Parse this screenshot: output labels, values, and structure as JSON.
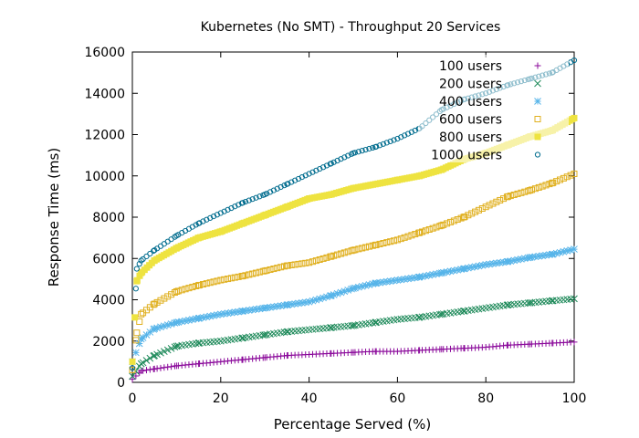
{
  "chart_data": {
    "type": "scatter",
    "title": "Kubernetes (No SMT) - Throughput 20 Services",
    "xlabel": "Percentage Served (%)",
    "ylabel": "Response Time (ms)",
    "xlim": [
      0,
      100
    ],
    "ylim": [
      0,
      16000
    ],
    "xticks": [
      "0",
      "20",
      "40",
      "60",
      "80",
      "100"
    ],
    "yticks": [
      "0",
      "2000",
      "4000",
      "6000",
      "8000",
      "10000",
      "12000",
      "14000",
      "16000"
    ],
    "grid": false,
    "legend_position": "top-right",
    "series": [
      {
        "name": "100 users",
        "marker": "plus",
        "color": "#8B0A9B",
        "points": [
          [
            0,
            150
          ],
          [
            2,
            550
          ],
          [
            5,
            650
          ],
          [
            10,
            800
          ],
          [
            15,
            900
          ],
          [
            20,
            1000
          ],
          [
            25,
            1100
          ],
          [
            30,
            1200
          ],
          [
            35,
            1300
          ],
          [
            40,
            1350
          ],
          [
            45,
            1400
          ],
          [
            50,
            1450
          ],
          [
            55,
            1500
          ],
          [
            60,
            1500
          ],
          [
            65,
            1550
          ],
          [
            70,
            1600
          ],
          [
            75,
            1650
          ],
          [
            80,
            1700
          ],
          [
            85,
            1800
          ],
          [
            90,
            1850
          ],
          [
            95,
            1900
          ],
          [
            100,
            1950
          ]
        ]
      },
      {
        "name": "200 users",
        "marker": "cross",
        "color": "#1E8A5A",
        "points": [
          [
            0,
            300
          ],
          [
            2,
            900
          ],
          [
            5,
            1300
          ],
          [
            10,
            1750
          ],
          [
            15,
            1900
          ],
          [
            20,
            2000
          ],
          [
            25,
            2150
          ],
          [
            30,
            2300
          ],
          [
            35,
            2450
          ],
          [
            40,
            2550
          ],
          [
            45,
            2650
          ],
          [
            50,
            2750
          ],
          [
            55,
            2900
          ],
          [
            60,
            3050
          ],
          [
            65,
            3150
          ],
          [
            70,
            3300
          ],
          [
            75,
            3450
          ],
          [
            80,
            3600
          ],
          [
            85,
            3750
          ],
          [
            90,
            3850
          ],
          [
            95,
            3950
          ],
          [
            100,
            4050
          ]
        ]
      },
      {
        "name": "400 users",
        "marker": "star",
        "color": "#56B4E9",
        "points": [
          [
            0,
            1000
          ],
          [
            2,
            2100
          ],
          [
            5,
            2600
          ],
          [
            10,
            2900
          ],
          [
            15,
            3100
          ],
          [
            20,
            3300
          ],
          [
            25,
            3450
          ],
          [
            30,
            3600
          ],
          [
            35,
            3750
          ],
          [
            40,
            3900
          ],
          [
            45,
            4200
          ],
          [
            50,
            4550
          ],
          [
            55,
            4800
          ],
          [
            60,
            4950
          ],
          [
            65,
            5100
          ],
          [
            70,
            5300
          ],
          [
            75,
            5500
          ],
          [
            80,
            5700
          ],
          [
            85,
            5850
          ],
          [
            90,
            6050
          ],
          [
            95,
            6200
          ],
          [
            100,
            6450
          ]
        ]
      },
      {
        "name": "600 users",
        "marker": "square",
        "color": "#E0B020",
        "points": [
          [
            0,
            600
          ],
          [
            1,
            2400
          ],
          [
            2,
            3300
          ],
          [
            5,
            3800
          ],
          [
            10,
            4400
          ],
          [
            15,
            4700
          ],
          [
            20,
            4950
          ],
          [
            25,
            5150
          ],
          [
            30,
            5400
          ],
          [
            35,
            5650
          ],
          [
            40,
            5800
          ],
          [
            45,
            6100
          ],
          [
            50,
            6400
          ],
          [
            55,
            6650
          ],
          [
            60,
            6900
          ],
          [
            65,
            7250
          ],
          [
            70,
            7600
          ],
          [
            75,
            8000
          ],
          [
            80,
            8500
          ],
          [
            85,
            9000
          ],
          [
            90,
            9300
          ],
          [
            95,
            9650
          ],
          [
            100,
            10100
          ]
        ]
      },
      {
        "name": "800 users",
        "marker": "filled-square",
        "color": "#EEE340",
        "points": [
          [
            0,
            1000
          ],
          [
            1,
            4900
          ],
          [
            2,
            5300
          ],
          [
            5,
            5900
          ],
          [
            10,
            6500
          ],
          [
            15,
            7000
          ],
          [
            20,
            7300
          ],
          [
            25,
            7700
          ],
          [
            30,
            8100
          ],
          [
            35,
            8500
          ],
          [
            40,
            8900
          ],
          [
            45,
            9100
          ],
          [
            50,
            9400
          ],
          [
            55,
            9600
          ],
          [
            60,
            9800
          ],
          [
            65,
            10000
          ],
          [
            70,
            10300
          ],
          [
            75,
            10800
          ],
          [
            80,
            11100
          ],
          [
            85,
            11500
          ],
          [
            90,
            11900
          ],
          [
            95,
            12200
          ],
          [
            100,
            12800
          ]
        ]
      },
      {
        "name": "1000 users",
        "marker": "circle",
        "color": "#006C8E",
        "points": [
          [
            0,
            700
          ],
          [
            1,
            5500
          ],
          [
            2,
            5900
          ],
          [
            5,
            6400
          ],
          [
            10,
            7100
          ],
          [
            15,
            7700
          ],
          [
            20,
            8200
          ],
          [
            25,
            8700
          ],
          [
            30,
            9100
          ],
          [
            35,
            9600
          ],
          [
            40,
            10100
          ],
          [
            45,
            10600
          ],
          [
            50,
            11100
          ],
          [
            55,
            11400
          ],
          [
            60,
            11800
          ],
          [
            65,
            12300
          ],
          [
            70,
            13200
          ],
          [
            75,
            13700
          ],
          [
            80,
            14000
          ],
          [
            85,
            14400
          ],
          [
            90,
            14700
          ],
          [
            95,
            15000
          ],
          [
            100,
            15600
          ]
        ]
      }
    ]
  }
}
